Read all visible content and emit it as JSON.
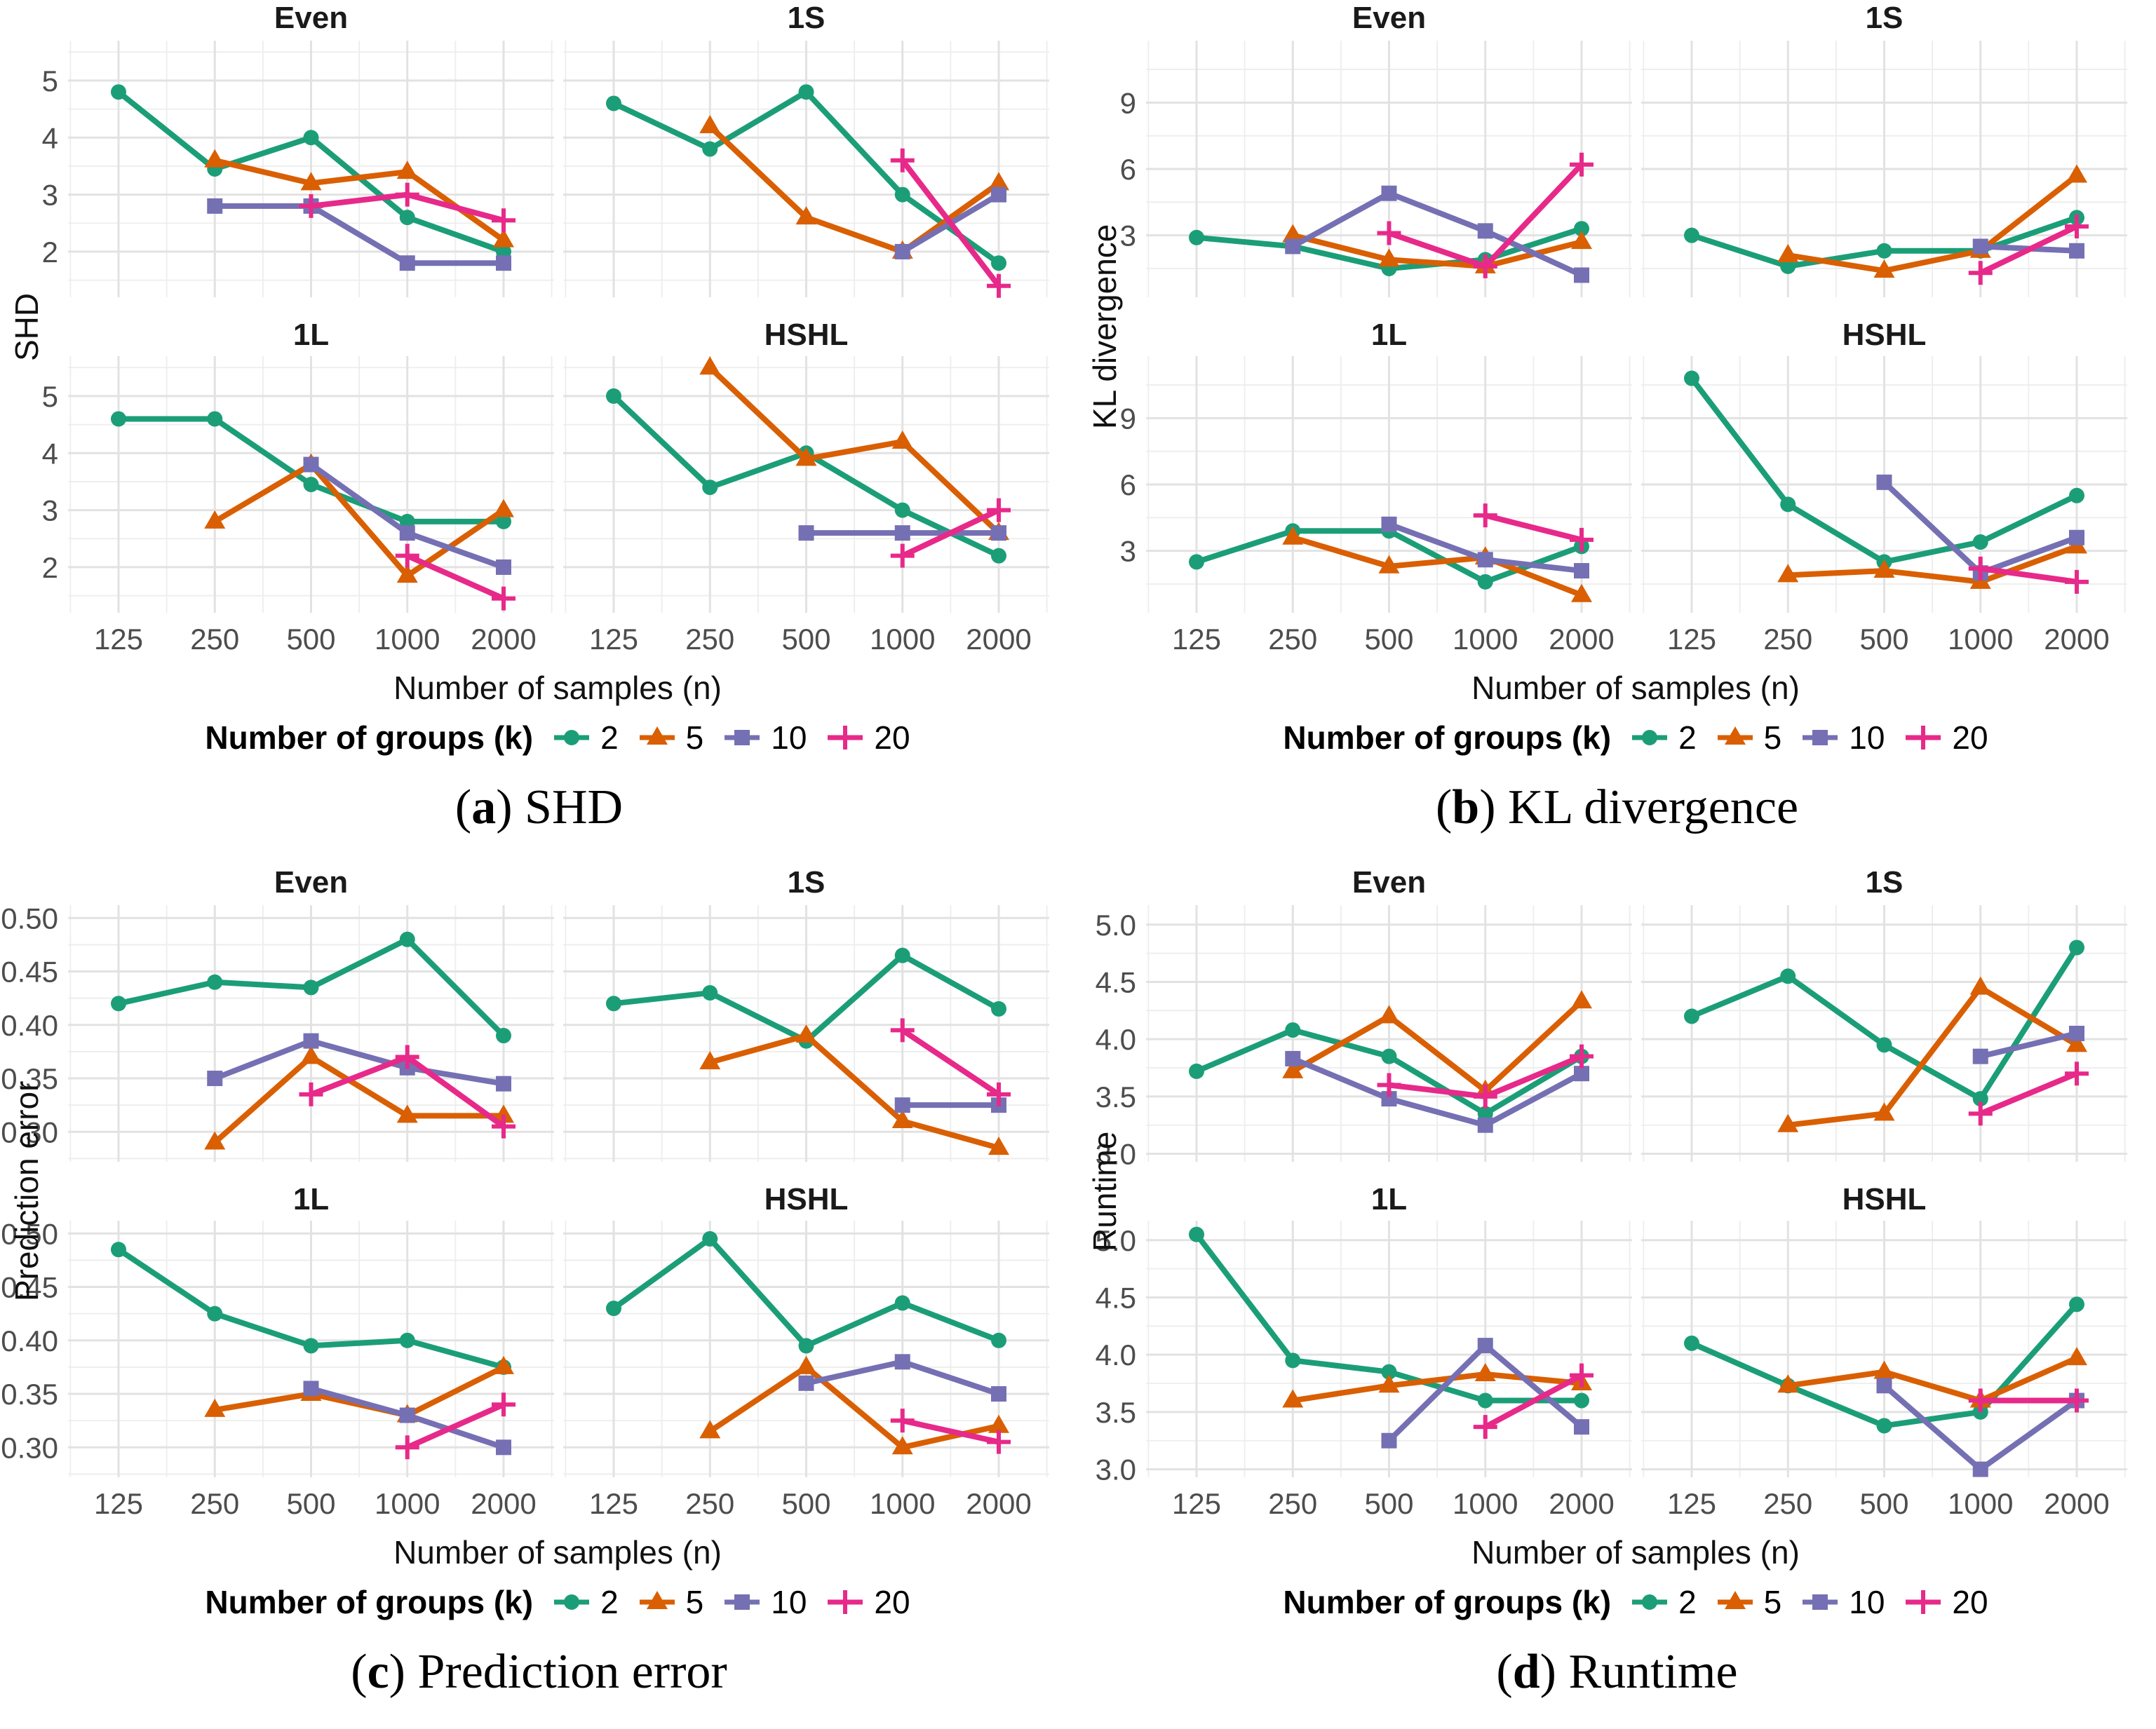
{
  "figure": {
    "xlabel": "Number of samples (n)",
    "x_ticks": [
      "125",
      "250",
      "500",
      "1000",
      "2000"
    ],
    "legend_title": "Number of groups (k)",
    "groups": [
      {
        "key": "k2",
        "label": "2",
        "color": "#1B9E77",
        "marker": "circle"
      },
      {
        "key": "k5",
        "label": "5",
        "color": "#D95F02",
        "marker": "triangle"
      },
      {
        "key": "k10",
        "label": "10",
        "color": "#7570B3",
        "marker": "square"
      },
      {
        "key": "k20",
        "label": "20",
        "color": "#E7298A",
        "marker": "plus"
      }
    ],
    "grid_major_color": "#E2E2E2",
    "grid_minor_color": "#EDEDED",
    "tick_label_color": "#4D4D4D"
  },
  "chart_data": [
    {
      "id": "a",
      "type": "line",
      "caption_letter": "a",
      "caption_text": "SHD",
      "ylabel": "SHD",
      "x_categories": [
        125,
        250,
        500,
        1000,
        2000
      ],
      "x_scale": "log2",
      "ylim": [
        1.2,
        5.7
      ],
      "yticks": [
        2,
        3,
        4,
        5
      ],
      "ytick_labels": [
        "2",
        "3",
        "4",
        "5"
      ],
      "yminor": [
        1.5,
        2.5,
        3.5,
        4.5,
        5.5
      ],
      "legend_position": "bottom",
      "grid": true,
      "facets": [
        {
          "name": "Even",
          "series": {
            "k2": [
              4.8,
              3.45,
              4.0,
              2.6,
              2.0
            ],
            "k5": [
              null,
              3.6,
              3.2,
              3.4,
              2.2
            ],
            "k10": [
              null,
              2.8,
              2.8,
              1.8,
              1.8
            ],
            "k20": [
              null,
              null,
              2.8,
              3.0,
              2.55
            ]
          }
        },
        {
          "name": "1S",
          "series": {
            "k2": [
              4.6,
              3.8,
              4.8,
              3.0,
              1.8
            ],
            "k5": [
              null,
              4.2,
              2.6,
              2.0,
              3.2
            ],
            "k10": [
              null,
              null,
              null,
              2.0,
              3.0
            ],
            "k20": [
              null,
              null,
              null,
              3.6,
              1.4
            ]
          }
        },
        {
          "name": "1L",
          "series": {
            "k2": [
              4.6,
              4.6,
              3.45,
              2.8,
              2.8
            ],
            "k5": [
              null,
              2.8,
              3.8,
              1.85,
              3.0
            ],
            "k10": [
              null,
              null,
              3.8,
              2.6,
              2.0
            ],
            "k20": [
              null,
              null,
              null,
              2.2,
              1.45
            ]
          }
        },
        {
          "name": "HSHL",
          "series": {
            "k2": [
              5.0,
              3.4,
              4.0,
              3.0,
              2.2
            ],
            "k5": [
              null,
              5.5,
              3.9,
              4.2,
              2.6
            ],
            "k10": [
              null,
              null,
              2.6,
              2.6,
              2.6
            ],
            "k20": [
              null,
              null,
              null,
              2.2,
              3.0
            ]
          }
        }
      ]
    },
    {
      "id": "b",
      "type": "line",
      "caption_letter": "b",
      "caption_text": "KL divergence",
      "ylabel": "KL divergence",
      "x_categories": [
        125,
        250,
        500,
        1000,
        2000
      ],
      "x_scale": "log2",
      "ylim": [
        0.2,
        11.8
      ],
      "yticks": [
        3,
        6,
        9
      ],
      "ytick_labels": [
        "3",
        "6",
        "9"
      ],
      "yminor": [
        1.5,
        4.5,
        7.5,
        10.5
      ],
      "legend_position": "bottom",
      "grid": true,
      "facets": [
        {
          "name": "Even",
          "series": {
            "k2": [
              2.9,
              2.5,
              1.5,
              1.9,
              3.3
            ],
            "k5": [
              null,
              3.0,
              1.9,
              1.6,
              2.7
            ],
            "k10": [
              null,
              2.5,
              4.9,
              3.2,
              1.2
            ],
            "k20": [
              null,
              null,
              3.1,
              1.6,
              6.2
            ]
          }
        },
        {
          "name": "1S",
          "series": {
            "k2": [
              3.0,
              1.6,
              2.3,
              2.3,
              3.8
            ],
            "k5": [
              null,
              2.1,
              1.4,
              2.3,
              5.7
            ],
            "k10": [
              null,
              null,
              null,
              2.5,
              2.3
            ],
            "k20": [
              null,
              null,
              null,
              1.3,
              3.4
            ]
          }
        },
        {
          "name": "1L",
          "series": {
            "k2": [
              2.5,
              3.9,
              3.9,
              1.6,
              3.2
            ],
            "k5": [
              null,
              3.6,
              2.3,
              2.7,
              1.0
            ],
            "k10": [
              null,
              null,
              4.2,
              2.6,
              2.1
            ],
            "k20": [
              null,
              null,
              null,
              4.6,
              3.5
            ]
          }
        },
        {
          "name": "HSHL",
          "series": {
            "k2": [
              10.8,
              5.1,
              2.5,
              3.4,
              5.5
            ],
            "k5": [
              null,
              1.9,
              2.1,
              1.6,
              3.2
            ],
            "k10": [
              null,
              null,
              6.1,
              2.0,
              3.6
            ],
            "k20": [
              null,
              null,
              null,
              2.2,
              1.6
            ]
          }
        }
      ]
    },
    {
      "id": "c",
      "type": "line",
      "caption_letter": "c",
      "caption_text": "Prediction error",
      "ylabel": "Prediction error",
      "x_categories": [
        125,
        250,
        500,
        1000,
        2000
      ],
      "x_scale": "log2",
      "ylim": [
        0.272,
        0.512
      ],
      "yticks": [
        0.3,
        0.35,
        0.4,
        0.45,
        0.5
      ],
      "ytick_labels": [
        "0.30",
        "0.35",
        "0.40",
        "0.45",
        "0.50"
      ],
      "yminor": [
        0.275,
        0.325,
        0.375,
        0.425,
        0.475
      ],
      "legend_position": "bottom",
      "grid": true,
      "facets": [
        {
          "name": "Even",
          "series": {
            "k2": [
              0.42,
              0.44,
              0.435,
              0.48,
              0.39
            ],
            "k5": [
              null,
              0.29,
              0.37,
              0.315,
              0.315
            ],
            "k10": [
              null,
              0.35,
              0.385,
              0.36,
              0.345
            ],
            "k20": [
              null,
              null,
              0.335,
              0.37,
              0.305
            ]
          }
        },
        {
          "name": "1S",
          "series": {
            "k2": [
              0.42,
              0.43,
              0.385,
              0.465,
              0.415
            ],
            "k5": [
              null,
              0.365,
              0.39,
              0.31,
              0.285
            ],
            "k10": [
              null,
              null,
              null,
              0.325,
              0.325
            ],
            "k20": [
              null,
              null,
              null,
              0.395,
              0.335
            ]
          }
        },
        {
          "name": "1L",
          "series": {
            "k2": [
              0.485,
              0.425,
              0.395,
              0.4,
              0.375
            ],
            "k5": [
              null,
              0.335,
              0.35,
              0.33,
              0.375
            ],
            "k10": [
              null,
              null,
              0.355,
              0.33,
              0.3
            ],
            "k20": [
              null,
              null,
              null,
              0.3,
              0.34
            ]
          }
        },
        {
          "name": "HSHL",
          "series": {
            "k2": [
              0.43,
              0.495,
              0.395,
              0.435,
              0.4
            ],
            "k5": [
              null,
              0.315,
              0.375,
              0.3,
              0.32
            ],
            "k10": [
              null,
              null,
              0.36,
              0.38,
              0.35
            ],
            "k20": [
              null,
              null,
              null,
              0.325,
              0.305
            ]
          }
        }
      ]
    },
    {
      "id": "d",
      "type": "line",
      "caption_letter": "d",
      "caption_text": "Runtime",
      "ylabel": "Runtime",
      "x_categories": [
        125,
        250,
        500,
        1000,
        2000
      ],
      "x_scale": "log2",
      "ylim": [
        2.93,
        5.17
      ],
      "yticks": [
        3.0,
        3.5,
        4.0,
        4.5,
        5.0
      ],
      "ytick_labels": [
        "3.0",
        "3.5",
        "4.0",
        "4.5",
        "5.0"
      ],
      "yminor": [
        3.25,
        3.75,
        4.25,
        4.75
      ],
      "legend_position": "bottom",
      "grid": true,
      "facets": [
        {
          "name": "Even",
          "series": {
            "k2": [
              3.72,
              4.08,
              3.85,
              3.35,
              3.85
            ],
            "k5": [
              null,
              3.72,
              4.2,
              3.55,
              4.33
            ],
            "k10": [
              null,
              3.83,
              3.48,
              3.25,
              3.7
            ],
            "k20": [
              null,
              null,
              3.6,
              3.5,
              3.85
            ]
          }
        },
        {
          "name": "1S",
          "series": {
            "k2": [
              4.2,
              4.55,
              3.95,
              3.48,
              4.8
            ],
            "k5": [
              null,
              3.25,
              3.35,
              4.45,
              3.95
            ],
            "k10": [
              null,
              null,
              null,
              3.85,
              4.05
            ],
            "k20": [
              null,
              null,
              null,
              3.35,
              3.7
            ]
          }
        },
        {
          "name": "1L",
          "series": {
            "k2": [
              5.05,
              3.95,
              3.85,
              3.6,
              3.6
            ],
            "k5": [
              null,
              3.6,
              3.73,
              3.83,
              3.75
            ],
            "k10": [
              null,
              null,
              3.25,
              4.08,
              3.37
            ],
            "k20": [
              null,
              null,
              null,
              3.37,
              3.82
            ]
          }
        },
        {
          "name": "HSHL",
          "series": {
            "k2": [
              4.1,
              3.73,
              3.38,
              3.5,
              4.44
            ],
            "k5": [
              null,
              3.73,
              3.85,
              3.6,
              3.97
            ],
            "k10": [
              null,
              null,
              3.73,
              3.0,
              3.6
            ],
            "k20": [
              null,
              null,
              null,
              3.6,
              3.6
            ]
          }
        }
      ]
    }
  ]
}
